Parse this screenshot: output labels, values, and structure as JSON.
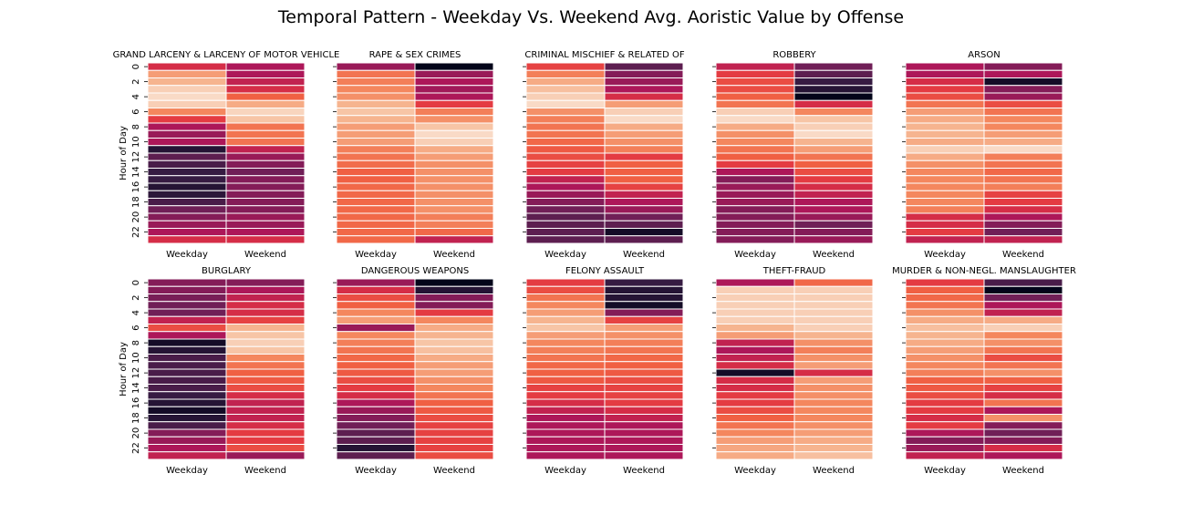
{
  "title": "Temporal Pattern - Weekday Vs. Weekend Avg. Aoristic Value by Offense",
  "ylabel": "Hour of Day",
  "colormap": "rocket",
  "chart_data": [
    {
      "type": "heatmap",
      "title": "GRAND LARCENY & LARCENY OF MOTOR VEHICLE",
      "xlabels": [
        "Weekday",
        "Weekend"
      ],
      "ytick_labels": [
        "0",
        "2",
        "4",
        "6",
        "8",
        "10",
        "12",
        "14",
        "16",
        "18",
        "20",
        "22"
      ],
      "weekday": [
        0.55,
        0.85,
        0.9,
        0.95,
        0.97,
        0.95,
        0.8,
        0.6,
        0.45,
        0.4,
        0.45,
        0.1,
        0.25,
        0.2,
        0.15,
        0.15,
        0.1,
        0.12,
        0.2,
        0.3,
        0.35,
        0.4,
        0.45,
        0.55
      ],
      "weekend": [
        0.45,
        0.45,
        0.5,
        0.55,
        0.7,
        0.88,
        0.96,
        0.93,
        0.75,
        0.75,
        0.75,
        0.5,
        0.4,
        0.35,
        0.3,
        0.35,
        0.35,
        0.35,
        0.35,
        0.35,
        0.4,
        0.4,
        0.45,
        0.55
      ]
    },
    {
      "type": "heatmap",
      "title": "RAPE & SEX CRIMES",
      "xlabels": [
        "Weekday",
        "Weekend"
      ],
      "ytick_labels": [
        "0",
        "2",
        "4",
        "6",
        "8",
        "10",
        "12",
        "14",
        "16",
        "18",
        "20",
        "22"
      ],
      "weekday": [
        0.4,
        0.75,
        0.78,
        0.8,
        0.82,
        0.9,
        0.93,
        0.9,
        0.85,
        0.85,
        0.85,
        0.78,
        0.75,
        0.73,
        0.7,
        0.7,
        0.72,
        0.72,
        0.72,
        0.72,
        0.72,
        0.72,
        0.72,
        0.72
      ],
      "weekend": [
        0.0,
        0.4,
        0.45,
        0.42,
        0.45,
        0.6,
        0.78,
        0.82,
        0.93,
        0.97,
        0.95,
        0.88,
        0.85,
        0.82,
        0.82,
        0.82,
        0.82,
        0.82,
        0.82,
        0.82,
        0.78,
        0.78,
        0.72,
        0.5
      ]
    },
    {
      "type": "heatmap",
      "title": "CRIMINAL MISCHIEF & RELATED OF",
      "xlabels": [
        "Weekday",
        "Weekend"
      ],
      "ytick_labels": [
        "0",
        "2",
        "4",
        "6",
        "8",
        "10",
        "12",
        "14",
        "16",
        "18",
        "20",
        "22"
      ],
      "weekday": [
        0.62,
        0.78,
        0.88,
        0.92,
        0.95,
        0.97,
        0.82,
        0.78,
        0.75,
        0.75,
        0.72,
        0.68,
        0.65,
        0.62,
        0.6,
        0.5,
        0.45,
        0.4,
        0.35,
        0.3,
        0.25,
        0.25,
        0.25,
        0.25
      ],
      "weekend": [
        0.25,
        0.35,
        0.4,
        0.45,
        0.55,
        0.85,
        0.95,
        0.97,
        0.88,
        0.85,
        0.82,
        0.78,
        0.6,
        0.7,
        0.7,
        0.7,
        0.62,
        0.5,
        0.45,
        0.4,
        0.3,
        0.25,
        0.05,
        0.25
      ]
    },
    {
      "type": "heatmap",
      "title": "ROBBERY",
      "xlabels": [
        "Weekday",
        "Weekend"
      ],
      "ytick_labels": [
        "0",
        "2",
        "4",
        "6",
        "8",
        "10",
        "12",
        "14",
        "16",
        "18",
        "20",
        "22"
      ],
      "weekday": [
        0.5,
        0.6,
        0.65,
        0.65,
        0.7,
        0.75,
        0.95,
        0.97,
        0.88,
        0.82,
        0.8,
        0.75,
        0.7,
        0.6,
        0.45,
        0.35,
        0.4,
        0.4,
        0.4,
        0.35,
        0.35,
        0.35,
        0.35,
        0.35
      ],
      "weekend": [
        0.3,
        0.25,
        0.15,
        0.1,
        0.0,
        0.55,
        0.8,
        0.93,
        0.95,
        0.97,
        0.9,
        0.85,
        0.75,
        0.7,
        0.65,
        0.6,
        0.55,
        0.5,
        0.45,
        0.45,
        0.4,
        0.3,
        0.35,
        0.4
      ]
    },
    {
      "type": "heatmap",
      "title": "ARSON",
      "xlabels": [
        "Weekday",
        "Weekend"
      ],
      "ytick_labels": [
        "0",
        "2",
        "4",
        "6",
        "8",
        "10",
        "12",
        "14",
        "16",
        "18",
        "20",
        "22"
      ],
      "weekday": [
        0.45,
        0.45,
        0.55,
        0.6,
        0.65,
        0.75,
        0.85,
        0.88,
        0.9,
        0.9,
        0.88,
        0.95,
        0.88,
        0.82,
        0.8,
        0.8,
        0.8,
        0.8,
        0.8,
        0.78,
        0.55,
        0.55,
        0.6,
        0.5
      ],
      "weekend": [
        0.35,
        0.45,
        0.05,
        0.35,
        0.4,
        0.65,
        0.75,
        0.8,
        0.8,
        0.85,
        0.88,
        0.97,
        0.78,
        0.75,
        0.72,
        0.75,
        0.78,
        0.62,
        0.6,
        0.55,
        0.45,
        0.35,
        0.3,
        0.5
      ]
    },
    {
      "type": "heatmap",
      "title": "BURGLARY",
      "xlabels": [
        "Weekday",
        "Weekend"
      ],
      "ytick_labels": [
        "0",
        "2",
        "4",
        "6",
        "8",
        "10",
        "12",
        "14",
        "16",
        "18",
        "20",
        "22"
      ],
      "weekday": [
        0.35,
        0.35,
        0.32,
        0.3,
        0.3,
        0.5,
        0.65,
        0.45,
        0.05,
        0.1,
        0.2,
        0.2,
        0.2,
        0.2,
        0.2,
        0.15,
        0.1,
        0.05,
        0.1,
        0.2,
        0.35,
        0.4,
        0.45,
        0.5
      ],
      "weekend": [
        0.35,
        0.45,
        0.5,
        0.55,
        0.55,
        0.62,
        0.9,
        0.93,
        0.95,
        0.93,
        0.8,
        0.75,
        0.7,
        0.68,
        0.65,
        0.55,
        0.5,
        0.5,
        0.5,
        0.55,
        0.6,
        0.6,
        0.65,
        0.4
      ]
    },
    {
      "type": "heatmap",
      "title": "DANGEROUS WEAPONS",
      "xlabels": [
        "Weekday",
        "Weekend"
      ],
      "ytick_labels": [
        "0",
        "2",
        "4",
        "6",
        "8",
        "10",
        "12",
        "14",
        "16",
        "18",
        "20",
        "22"
      ],
      "weekday": [
        0.4,
        0.55,
        0.65,
        0.7,
        0.8,
        0.85,
        0.4,
        0.8,
        0.78,
        0.75,
        0.72,
        0.7,
        0.68,
        0.65,
        0.6,
        0.55,
        0.45,
        0.4,
        0.35,
        0.3,
        0.25,
        0.25,
        0.1,
        0.25
      ],
      "weekend": [
        0.0,
        0.1,
        0.35,
        0.35,
        0.6,
        0.8,
        0.88,
        0.9,
        0.93,
        0.92,
        0.88,
        0.85,
        0.85,
        0.82,
        0.8,
        0.75,
        0.7,
        0.68,
        0.65,
        0.62,
        0.62,
        0.62,
        0.62,
        0.65
      ]
    },
    {
      "type": "heatmap",
      "title": "FELONY ASSAULT",
      "xlabels": [
        "Weekday",
        "Weekend"
      ],
      "ytick_labels": [
        "0",
        "2",
        "4",
        "6",
        "8",
        "10",
        "12",
        "14",
        "16",
        "18",
        "20",
        "22"
      ],
      "weekday": [
        0.6,
        0.65,
        0.75,
        0.8,
        0.85,
        0.9,
        0.93,
        0.85,
        0.8,
        0.78,
        0.75,
        0.72,
        0.7,
        0.68,
        0.62,
        0.6,
        0.55,
        0.5,
        0.45,
        0.45,
        0.45,
        0.45,
        0.45,
        0.45
      ],
      "weekend": [
        0.15,
        0.1,
        0.1,
        0.05,
        0.35,
        0.62,
        0.85,
        0.82,
        0.78,
        0.75,
        0.72,
        0.7,
        0.68,
        0.65,
        0.62,
        0.62,
        0.6,
        0.55,
        0.5,
        0.45,
        0.45,
        0.45,
        0.45,
        0.45
      ]
    },
    {
      "type": "heatmap",
      "title": "THEFT-FRAUD",
      "xlabels": [
        "Weekday",
        "Weekend"
      ],
      "ytick_labels": [
        "0",
        "2",
        "4",
        "6",
        "8",
        "10",
        "12",
        "14",
        "16",
        "18",
        "20",
        "22"
      ],
      "weekday": [
        0.45,
        0.95,
        0.95,
        0.95,
        0.95,
        0.95,
        0.9,
        0.85,
        0.5,
        0.45,
        0.5,
        0.55,
        0.05,
        0.55,
        0.55,
        0.6,
        0.6,
        0.65,
        0.7,
        0.75,
        0.8,
        0.85,
        0.87,
        0.88
      ],
      "weekend": [
        0.72,
        0.95,
        0.95,
        0.95,
        0.95,
        0.95,
        0.95,
        0.9,
        0.82,
        0.78,
        0.82,
        0.85,
        0.55,
        0.85,
        0.82,
        0.82,
        0.8,
        0.8,
        0.8,
        0.82,
        0.85,
        0.88,
        0.9,
        0.92
      ]
    },
    {
      "type": "heatmap",
      "title": "MURDER & NON-NEGL. MANSLAUGHTER",
      "xlabels": [
        "Weekday",
        "Weekend"
      ],
      "ytick_labels": [
        "0",
        "2",
        "4",
        "6",
        "8",
        "10",
        "12",
        "14",
        "16",
        "18",
        "20",
        "22"
      ],
      "weekday": [
        0.6,
        0.7,
        0.72,
        0.75,
        0.82,
        0.88,
        0.92,
        0.9,
        0.88,
        0.85,
        0.82,
        0.8,
        0.78,
        0.7,
        0.68,
        0.65,
        0.6,
        0.6,
        0.55,
        0.6,
        0.45,
        0.35,
        0.4,
        0.5
      ],
      "weekend": [
        0.2,
        0.0,
        0.3,
        0.45,
        0.5,
        0.88,
        0.95,
        0.8,
        0.82,
        0.75,
        0.65,
        0.75,
        0.82,
        0.7,
        0.62,
        0.55,
        0.75,
        0.45,
        0.82,
        0.35,
        0.3,
        0.35,
        0.55,
        0.45
      ]
    }
  ]
}
